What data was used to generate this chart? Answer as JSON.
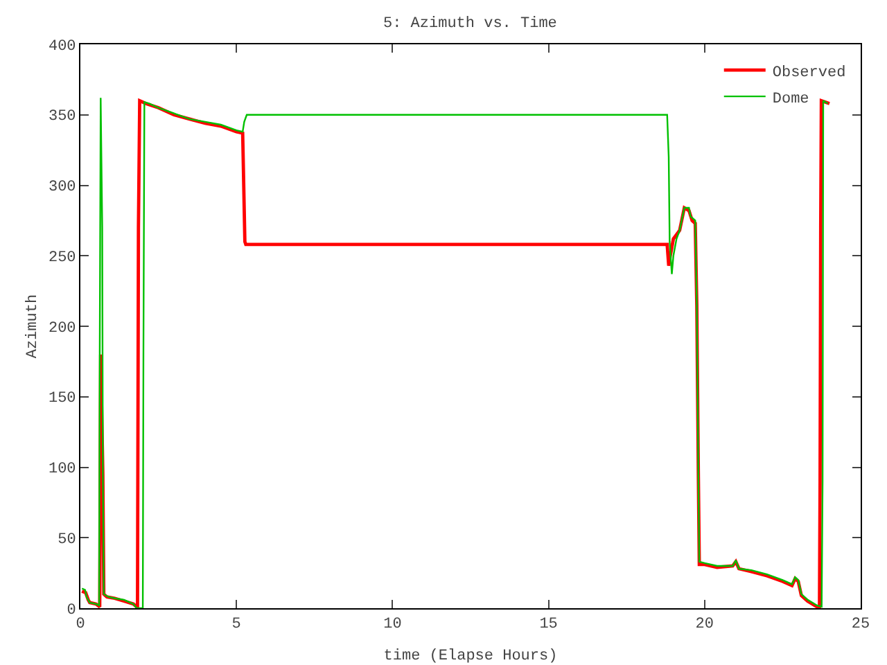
{
  "chart_data": {
    "type": "line",
    "title": "5: Azimuth vs. Time",
    "xlabel": "time (Elapse Hours)",
    "ylabel": "Azimuth",
    "xlim": [
      0,
      25
    ],
    "xticks": [
      0,
      5,
      10,
      15,
      20,
      25
    ],
    "ylim": [
      0,
      400
    ],
    "yticks": [
      0,
      50,
      100,
      150,
      200,
      250,
      300,
      350,
      400
    ],
    "grid": false,
    "legend": "top right",
    "marker": "none",
    "line_style": "solid",
    "series": [
      {
        "name": "Observed",
        "color": "#ff0000",
        "x": [
          0.05,
          0.17,
          0.25,
          0.3,
          0.5,
          0.62,
          0.65,
          0.72,
          0.75,
          0.85,
          1.1,
          1.4,
          1.7,
          1.8,
          1.83,
          1.84,
          1.86,
          1.9,
          2.1,
          2.5,
          3,
          3.5,
          4,
          4.5,
          5.0,
          5.2,
          5.27,
          5.3,
          18.8,
          18.85,
          18.9,
          19.0,
          19.1,
          19.2,
          19.35,
          19.5,
          19.6,
          19.7,
          19.75,
          19.8,
          19.83,
          20.0,
          20.4,
          20.9,
          21.0,
          21.1,
          21.5,
          22,
          22.5,
          22.8,
          22.9,
          23.0,
          23.1,
          23.3,
          23.6,
          23.68,
          23.7,
          23.72,
          23.74,
          24.0
        ],
        "values": [
          12,
          11,
          6,
          4,
          3,
          1,
          180,
          95,
          10,
          8,
          7,
          5,
          3,
          1,
          1,
          90,
          270,
          360,
          358,
          355,
          350,
          347,
          344,
          342,
          338,
          337,
          260,
          258,
          258,
          243,
          250,
          262,
          265,
          268,
          284,
          282,
          275,
          273,
          215,
          93,
          31,
          31,
          29,
          30,
          33,
          28,
          26,
          23,
          19,
          16,
          21,
          19,
          9,
          5,
          1,
          0,
          90,
          270,
          360,
          358
        ]
      },
      {
        "name": "Dome",
        "color": "#00c000",
        "x": [
          0.05,
          0.15,
          0.2,
          0.3,
          0.5,
          0.6,
          0.62,
          0.65,
          0.7,
          0.72,
          0.75,
          0.9,
          1.1,
          1.4,
          1.7,
          1.8,
          2.0,
          2.02,
          2.05,
          2.2,
          2.5,
          3,
          3.5,
          4,
          4.5,
          5.0,
          5.2,
          5.25,
          5.33,
          18.8,
          18.85,
          18.88,
          18.95,
          19.0,
          19.1,
          19.2,
          19.35,
          19.5,
          19.55,
          19.7,
          19.75,
          19.8,
          19.83,
          20.0,
          20.4,
          20.9,
          21.0,
          21.1,
          21.5,
          22,
          22.5,
          22.8,
          22.9,
          23.0,
          23.1,
          23.3,
          23.6,
          23.75,
          23.78,
          23.8,
          23.95
        ],
        "values": [
          14,
          13,
          8,
          4,
          3,
          2,
          180,
          362,
          270,
          96,
          10,
          8,
          7,
          6,
          3,
          0,
          0,
          180,
          359,
          358,
          355,
          351,
          347,
          345,
          343,
          339,
          338,
          345,
          350,
          350,
          320,
          260,
          237,
          250,
          262,
          268,
          284,
          284,
          278,
          275,
          215,
          93,
          33,
          32,
          30,
          30,
          34,
          28,
          27,
          24,
          20,
          17,
          22,
          20,
          10,
          6,
          2,
          1,
          90,
          360,
          358
        ]
      }
    ]
  }
}
